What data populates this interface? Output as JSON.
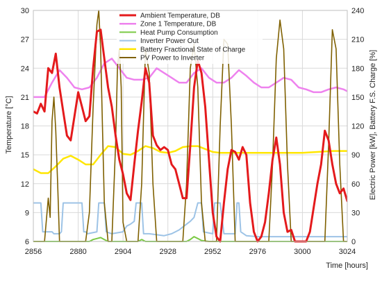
{
  "chart_data": {
    "type": "line",
    "xlabel": "Time [hours]",
    "ylabel_left": "Temperature [°C]",
    "ylabel_right": "Electric Power [kW], Battery F.S. Charge [%]",
    "xlim": [
      2856,
      3024
    ],
    "ylim_left": [
      6,
      30
    ],
    "ylim_right": [
      0,
      240
    ],
    "x_ticks": [
      2856,
      2880,
      2904,
      2928,
      2952,
      2976,
      3000,
      3024
    ],
    "y_left_ticks": [
      6,
      9,
      12,
      15,
      18,
      21,
      24,
      27,
      30
    ],
    "y_right_ticks": [
      0,
      30,
      60,
      90,
      120,
      150,
      180,
      210,
      240
    ],
    "grid": true,
    "legend_position": "top-center",
    "series": [
      {
        "name": "Ambient Temperature, DB",
        "axis": "left",
        "color": "#e41a1c",
        "x": [
          2856,
          2858,
          2860,
          2862,
          2864,
          2866,
          2868,
          2870,
          2872,
          2874,
          2876,
          2878,
          2880,
          2882,
          2884,
          2886,
          2888,
          2890,
          2892,
          2894,
          2896,
          2898,
          2900,
          2902,
          2904,
          2906,
          2908,
          2910,
          2912,
          2914,
          2916,
          2918,
          2920,
          2922,
          2924,
          2926,
          2928,
          2930,
          2932,
          2934,
          2936,
          2938,
          2940,
          2942,
          2944,
          2946,
          2948,
          2950,
          2952,
          2954,
          2956,
          2958,
          2960,
          2962,
          2964,
          2966,
          2968,
          2970,
          2972,
          2974,
          2976,
          2978,
          2980,
          2982,
          2984,
          2986,
          2988,
          2990,
          2992,
          2994,
          2996,
          2998,
          3000,
          3002,
          3004,
          3006,
          3008,
          3010,
          3012,
          3014,
          3016,
          3018,
          3020,
          3022,
          3024
        ],
        "values": [
          19.5,
          19.3,
          20.3,
          19.5,
          24.0,
          23.5,
          25.5,
          22.0,
          19.5,
          17.0,
          16.5,
          19.0,
          21.5,
          20.0,
          18.5,
          19.0,
          24.0,
          27.8,
          28.0,
          25.0,
          22.0,
          20.0,
          17.0,
          14.5,
          13.0,
          11.0,
          10.3,
          14.0,
          17.5,
          20.5,
          24.0,
          22.5,
          17.0,
          16.0,
          15.5,
          15.8,
          15.5,
          14.0,
          13.5,
          12.0,
          10.5,
          10.5,
          16.0,
          22.0,
          24.8,
          23.5,
          20.0,
          14.5,
          9.0,
          6.5,
          6.0,
          10.0,
          13.5,
          15.5,
          15.3,
          14.5,
          15.8,
          15.0,
          10.0,
          7.0,
          6.0,
          6.5,
          8.0,
          11.0,
          14.5,
          16.8,
          14.0,
          9.0,
          7.0,
          7.2,
          6.0,
          6.0,
          6.0,
          6.0,
          7.0,
          9.5,
          12.0,
          14.0,
          17.5,
          16.5,
          14.0,
          12.0,
          11.0,
          11.5,
          10.2
        ]
      },
      {
        "name": "Zone 1 Temperature, DB",
        "axis": "left",
        "color": "#ee82ee",
        "x": [
          2856,
          2862,
          2866,
          2870,
          2874,
          2878,
          2882,
          2886,
          2890,
          2894,
          2898,
          2902,
          2906,
          2910,
          2914,
          2918,
          2922,
          2926,
          2930,
          2934,
          2938,
          2942,
          2946,
          2950,
          2954,
          2958,
          2962,
          2966,
          2970,
          2974,
          2978,
          2982,
          2986,
          2990,
          2994,
          2998,
          3002,
          3006,
          3010,
          3014,
          3018,
          3022,
          3024
        ],
        "values": [
          21.0,
          21.0,
          22.5,
          23.8,
          23.0,
          22.0,
          21.8,
          22.0,
          23.0,
          24.5,
          25.0,
          24.0,
          23.0,
          22.8,
          22.8,
          23.0,
          24.0,
          23.5,
          23.0,
          22.5,
          22.5,
          23.5,
          24.0,
          23.0,
          22.5,
          22.5,
          23.0,
          23.8,
          23.2,
          22.5,
          22.0,
          22.0,
          22.5,
          23.0,
          22.8,
          22.0,
          21.8,
          21.5,
          21.5,
          21.8,
          22.0,
          21.8,
          21.6
        ]
      },
      {
        "name": "Heat Pump Consumption",
        "axis": "right",
        "color": "#7ac943",
        "x": [
          2856,
          2886,
          2888,
          2890,
          2892,
          2894,
          2896,
          2900,
          2912,
          2914,
          2916,
          2938,
          2940,
          2942,
          2944,
          2946,
          2950,
          3024
        ],
        "values": [
          0,
          0,
          2,
          3,
          4,
          2,
          0,
          0,
          0,
          2,
          0,
          0,
          2,
          5,
          3,
          1,
          0,
          0
        ]
      },
      {
        "name": "Inverter Power Out",
        "axis": "right",
        "color": "#9dc3e6",
        "x": [
          2856,
          2857,
          2860,
          2861,
          2866,
          2867,
          2870,
          2871,
          2872,
          2873,
          2874,
          2875,
          2878,
          2882,
          2883,
          2884,
          2885,
          2890,
          2891,
          2894,
          2895,
          2898,
          2904,
          2906,
          2908,
          2910,
          2911,
          2912,
          2913,
          2914,
          2915,
          2918,
          2926,
          2930,
          2934,
          2936,
          2940,
          2942,
          2944,
          2945,
          2946,
          2947,
          2952,
          2953,
          2956,
          2958,
          2964,
          2965,
          2966,
          2967,
          2970,
          2976,
          2982,
          2988,
          3000,
          3024
        ],
        "values": [
          40,
          40,
          40,
          10,
          10,
          8,
          8,
          10,
          40,
          40,
          40,
          40,
          40,
          40,
          10,
          10,
          8,
          10,
          40,
          40,
          10,
          8,
          10,
          16,
          18,
          21,
          40,
          40,
          40,
          40,
          8,
          8,
          6,
          8,
          12,
          15,
          21,
          25,
          40,
          40,
          40,
          10,
          8,
          40,
          40,
          8,
          8,
          40,
          40,
          10,
          6,
          5,
          5,
          5,
          5,
          5
        ]
      },
      {
        "name": "Battery Fractional State of Charge",
        "axis": "right",
        "color": "#ffe600",
        "x": [
          2856,
          2860,
          2864,
          2868,
          2872,
          2876,
          2880,
          2884,
          2888,
          2892,
          2896,
          2900,
          2904,
          2908,
          2912,
          2916,
          2920,
          2924,
          2928,
          2932,
          2936,
          2940,
          2944,
          2948,
          2952,
          2956,
          2960,
          2964,
          2968,
          2972,
          2976,
          2980,
          2984,
          2988,
          2992,
          3000,
          3008,
          3016,
          3024
        ],
        "values": [
          75,
          71,
          71,
          78,
          86,
          89,
          85,
          80,
          80,
          90,
          99,
          98,
          91,
          90,
          94,
          99,
          97,
          93,
          92,
          94,
          98,
          99,
          99,
          96,
          93,
          92,
          92,
          92,
          92,
          92,
          92,
          92,
          92,
          92,
          92,
          92,
          93,
          94,
          94
        ]
      },
      {
        "name": "PV  Power  to  Inverter",
        "axis": "right",
        "color": "#7f6000",
        "x": [
          2856,
          2858,
          2860,
          2862,
          2864,
          2865,
          2866,
          2867,
          2868,
          2869,
          2870,
          2872,
          2874,
          2876,
          2878,
          2880,
          2882,
          2884,
          2886,
          2888,
          2890,
          2891,
          2892,
          2893,
          2894,
          2896,
          2898,
          2900,
          2901,
          2902,
          2903,
          2904,
          2906,
          2908,
          2910,
          2912,
          2914,
          2916,
          2918,
          2920,
          2922,
          2924,
          2926,
          2928,
          2930,
          2932,
          2934,
          2936,
          2938,
          2940,
          2942,
          2944,
          2946,
          2948,
          2950,
          2952,
          2954,
          2956,
          2958,
          2960,
          2962,
          2964,
          2966,
          2968,
          2970,
          2972,
          2974,
          2976,
          2978,
          2980,
          2982,
          2984,
          2986,
          2988,
          2990,
          2992,
          2994,
          2996,
          2998,
          3000,
          3002,
          3004,
          3006,
          3008,
          3010,
          3012,
          3014,
          3016,
          3018,
          3020,
          3022,
          3024
        ],
        "values": [
          0,
          0,
          0,
          0,
          45,
          25,
          125,
          150,
          115,
          60,
          0,
          0,
          0,
          0,
          0,
          0,
          0,
          0,
          30,
          140,
          225,
          240,
          200,
          120,
          40,
          0,
          0,
          100,
          180,
          200,
          160,
          20,
          0,
          0,
          0,
          0,
          60,
          200,
          175,
          60,
          0,
          0,
          0,
          0,
          0,
          0,
          0,
          0,
          60,
          180,
          205,
          160,
          40,
          0,
          0,
          0,
          0,
          120,
          210,
          205,
          120,
          0,
          0,
          0,
          0,
          0,
          0,
          0,
          0,
          0,
          0,
          80,
          190,
          230,
          200,
          80,
          0,
          0,
          0,
          0,
          0,
          0,
          0,
          0,
          0,
          0,
          100,
          220,
          200,
          80,
          0,
          0
        ]
      }
    ]
  }
}
